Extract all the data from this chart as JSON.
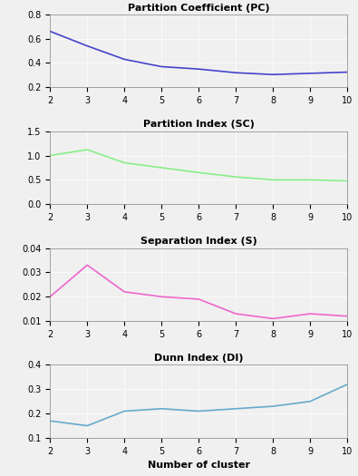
{
  "x": [
    2,
    3,
    4,
    5,
    6,
    7,
    8,
    9,
    10
  ],
  "pc": [
    0.66,
    0.54,
    0.43,
    0.37,
    0.35,
    0.32,
    0.305,
    0.315,
    0.325
  ],
  "sc": [
    1.0,
    1.12,
    0.85,
    0.75,
    0.65,
    0.56,
    0.5,
    0.5,
    0.48
  ],
  "s": [
    0.02,
    0.033,
    0.022,
    0.02,
    0.019,
    0.013,
    0.011,
    0.013,
    0.012
  ],
  "di": [
    0.17,
    0.15,
    0.21,
    0.22,
    0.21,
    0.22,
    0.23,
    0.25,
    0.32
  ],
  "pc_color": "#4444cc",
  "sc_color": "#88ee88",
  "s_color": "#ee66cc",
  "di_color": "#66aacc",
  "title1": "Partition Coefficient (PC)",
  "title2": "Partition Index (SC)",
  "title3": "Separation Index (S)",
  "title4": "Dunn Index (DI)",
  "xlabel": "Number of cluster",
  "pc_ylim": [
    0.2,
    0.8
  ],
  "sc_ylim": [
    0,
    1.5
  ],
  "s_ylim": [
    0.01,
    0.04
  ],
  "di_ylim": [
    0.1,
    0.4
  ],
  "pc_yticks": [
    0.2,
    0.4,
    0.6,
    0.8
  ],
  "sc_yticks": [
    0,
    0.5,
    1.0,
    1.5
  ],
  "s_yticks": [
    0.01,
    0.02,
    0.03,
    0.04
  ],
  "di_yticks": [
    0.1,
    0.2,
    0.3,
    0.4
  ],
  "bg_color": "#f0f0f0"
}
